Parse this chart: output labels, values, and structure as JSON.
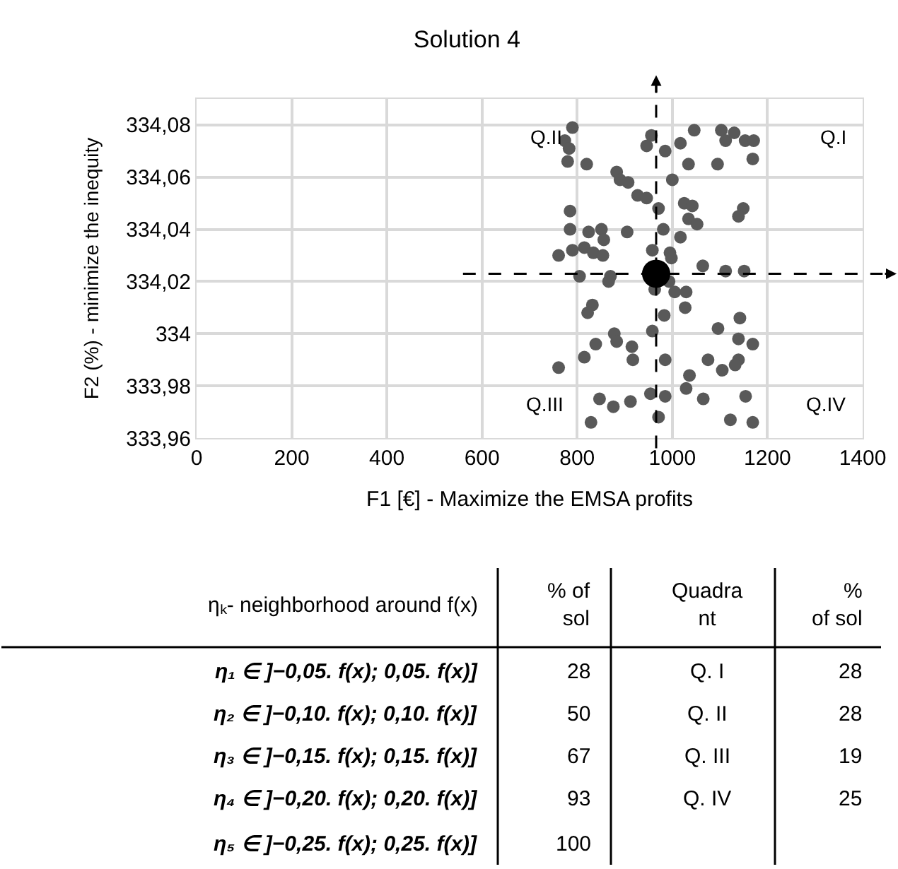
{
  "chart_data": {
    "type": "scatter",
    "title": "Solution 4",
    "xlabel": "F1 [€] - Maximize the EMSA profits",
    "ylabel": "F2 (%) - minimize the inequity",
    "xlim": [
      0,
      1400
    ],
    "xticks": [
      0,
      200,
      400,
      600,
      800,
      1000,
      1200,
      1400
    ],
    "ylim": [
      333.96,
      334.09
    ],
    "yticks": [
      {
        "value": 333.96,
        "label": "333,96"
      },
      {
        "value": 333.98,
        "label": "333,98"
      },
      334,
      {
        "value": 334.02,
        "label": "334,02"
      },
      {
        "value": 334.04,
        "label": "334,04"
      },
      {
        "value": 334.06,
        "label": "334,06"
      },
      {
        "value": 334.08,
        "label": "334,08"
      }
    ],
    "grid": true,
    "series": [
      {
        "color": "#595959",
        "x": [
          790,
          774,
          783,
          780,
          820,
          956,
          946,
          985,
          1017,
          1046,
          1103,
          1112,
          1130,
          1153,
          1171,
          1169,
          1095,
          1034,
          883,
          890,
          907,
          927,
          946,
          971,
          1000,
          1025,
          1042,
          1034,
          1052,
          1149,
          1139,
          785,
          785,
          824,
          851,
          905,
          981,
          1017,
          856,
          815,
          790,
          761,
          834,
          854,
          958,
          995,
          998,
          1064,
          1112,
          1151,
          805,
          870,
          866,
          963,
          993,
          1005,
          1029,
          1027,
          832,
          822,
          983,
          958,
          878,
          883,
          839,
          915,
          917,
          815,
          761,
          985,
          1096,
          1142,
          1139,
          1169,
          1139,
          1132,
          1105,
          1075,
          1036,
          1029,
          1065,
          1154,
          985,
          954,
          847,
          876,
          912,
          829,
          971,
          1122,
          1169
        ],
        "values": [
          334.079,
          334.074,
          334.071,
          334.066,
          334.065,
          334.076,
          334.072,
          334.07,
          334.073,
          334.078,
          334.078,
          334.074,
          334.077,
          334.074,
          334.074,
          334.067,
          334.065,
          334.065,
          334.062,
          334.059,
          334.058,
          334.053,
          334.052,
          334.048,
          334.059,
          334.05,
          334.049,
          334.044,
          334.042,
          334.048,
          334.045,
          334.047,
          334.04,
          334.039,
          334.04,
          334.039,
          334.04,
          334.037,
          334.036,
          334.033,
          334.032,
          334.03,
          334.031,
          334.03,
          334.032,
          334.031,
          334.029,
          334.026,
          334.024,
          334.024,
          334.022,
          334.022,
          334.02,
          334.017,
          334.02,
          334.016,
          334.016,
          334.01,
          334.011,
          334.008,
          334.007,
          334.001,
          334.0,
          333.997,
          333.996,
          333.995,
          333.99,
          333.991,
          333.987,
          333.99,
          334.002,
          334.006,
          333.998,
          333.996,
          333.99,
          333.988,
          333.986,
          333.99,
          333.984,
          333.979,
          333.975,
          333.976,
          333.976,
          333.977,
          333.975,
          333.972,
          333.974,
          333.966,
          333.968,
          333.967,
          333.966
        ]
      },
      {
        "color": "#000000",
        "x": [
          966
        ],
        "values": [
          334.023
        ]
      }
    ],
    "ref_lines": [
      {
        "axis": "x",
        "value": 966,
        "color": "#000000",
        "line_style": "dashed"
      },
      {
        "axis": "y",
        "value": 334.023,
        "color": "#000000",
        "line_style": "dashed"
      }
    ],
    "annotations": [
      "Q.II",
      "Q.I",
      "Q.III",
      "Q.IV",
      "ηₖ- neighborhood around f(x)",
      "% of\nsol",
      "Quadra\nnt",
      "%\nof sol",
      "η₁ ∈ ]−0,05. f(x); 0,05. f(x)]",
      "28",
      "Q. I",
      "28",
      "η₂ ∈ ]−0,10. f(x); 0,10. f(x)]",
      "50",
      "Q. II",
      "28",
      "η₃ ∈ ]−0,15. f(x); 0,15. f(x)]",
      "67",
      "Q. III",
      "19",
      "η₄ ∈ ]−0,20. f(x); 0,20. f(x)]",
      "93",
      "Q. IV",
      "25",
      "η₅ ∈ ]−0,25. f(x); 0,25. f(x)]",
      "100"
    ]
  }
}
